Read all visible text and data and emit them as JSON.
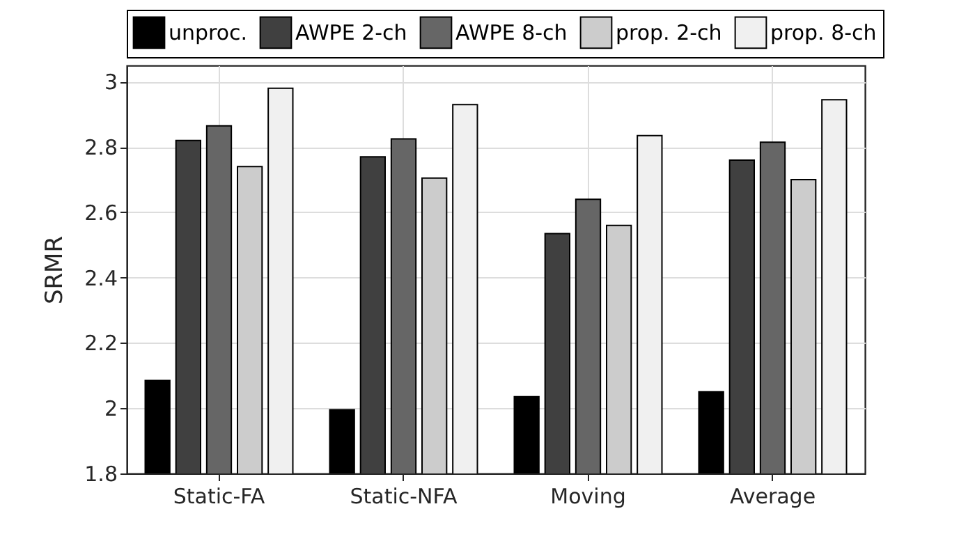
{
  "chart_data": {
    "type": "bar",
    "ylabel": "SRMR",
    "categories": [
      "Static-FA",
      "Static-NFA",
      "Moving",
      "Average"
    ],
    "series": [
      {
        "name": "unproc.",
        "color": "#000000",
        "values": [
          2.085,
          1.995,
          2.035,
          2.05
        ]
      },
      {
        "name": "AWPE 2-ch",
        "color": "#404040",
        "values": [
          2.82,
          2.77,
          2.535,
          2.76
        ]
      },
      {
        "name": "AWPE 8-ch",
        "color": "#666666",
        "values": [
          2.865,
          2.825,
          2.64,
          2.815
        ]
      },
      {
        "name": "prop. 2-ch",
        "color": "#cccccc",
        "values": [
          2.74,
          2.705,
          2.56,
          2.7
        ]
      },
      {
        "name": "prop. 8-ch",
        "color": "#f0f0f0",
        "values": [
          2.98,
          2.93,
          2.835,
          2.945
        ]
      }
    ],
    "ylim": [
      1.8,
      3.05
    ],
    "yticks": [
      1.8,
      2,
      2.2,
      2.4,
      2.6,
      2.8,
      3
    ],
    "grid": true,
    "legend": "top"
  }
}
